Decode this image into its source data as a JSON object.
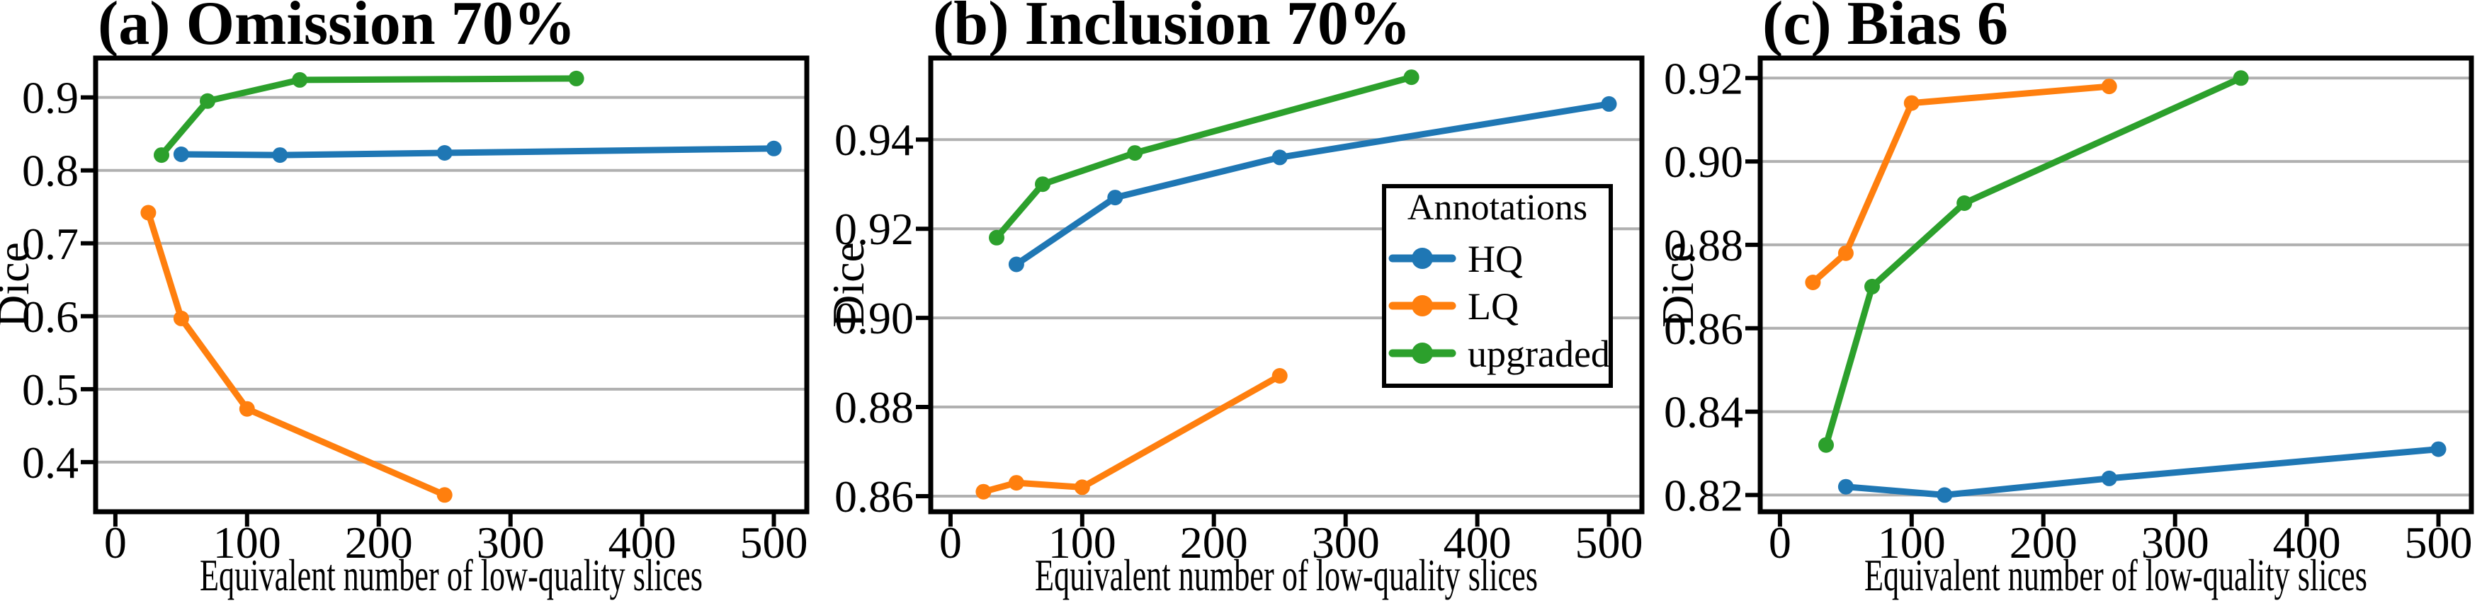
{
  "colors": {
    "hq": "#1f77b4",
    "lq": "#ff7f0e",
    "upgraded": "#2ca02c",
    "grid": "#b0b0b0",
    "spine": "#000000",
    "background": "#ffffff"
  },
  "legend": {
    "title": "Annotations",
    "entries": [
      {
        "label": "HQ",
        "color_key": "hq"
      },
      {
        "label": "LQ",
        "color_key": "lq"
      },
      {
        "label": "upgraded",
        "color_key": "upgraded"
      }
    ],
    "position": "inside panel b, right side"
  },
  "chart_data": [
    {
      "id": "a",
      "type": "line",
      "title": "(a) Omission 70%",
      "xlabel": "Equivalent number of low-quality slices",
      "ylabel": "Dice",
      "xlim": [
        -15,
        525
      ],
      "ylim": [
        0.332,
        0.954
      ],
      "xticks": [
        0,
        100,
        200,
        300,
        400,
        500
      ],
      "xtick_labels": [
        "0",
        "100",
        "200",
        "300",
        "400",
        "500"
      ],
      "yticks": [
        0.4,
        0.5,
        0.6,
        0.7,
        0.8,
        0.9
      ],
      "ytick_labels": [
        "0.4",
        "0.5",
        "0.6",
        "0.7",
        "0.8",
        "0.9"
      ],
      "grid": true,
      "show_legend": false,
      "series": [
        {
          "name": "HQ",
          "color_key": "hq",
          "points": [
            [
              50,
              0.822
            ],
            [
              125,
              0.821
            ],
            [
              250,
              0.824
            ],
            [
              500,
              0.83
            ]
          ]
        },
        {
          "name": "LQ",
          "color_key": "lq",
          "points": [
            [
              25,
              0.742
            ],
            [
              50,
              0.597
            ],
            [
              100,
              0.473
            ],
            [
              250,
              0.355
            ]
          ]
        },
        {
          "name": "upgraded",
          "color_key": "upgraded",
          "points": [
            [
              35,
              0.821
            ],
            [
              70,
              0.895
            ],
            [
              140,
              0.924
            ],
            [
              350,
              0.926
            ]
          ]
        }
      ]
    },
    {
      "id": "b",
      "type": "line",
      "title": "(b) Inclusion 70%",
      "xlabel": "Equivalent number of low-quality slices",
      "ylabel": "Dice",
      "xlim": [
        -15,
        525
      ],
      "ylim": [
        0.8565,
        0.9583
      ],
      "xticks": [
        0,
        100,
        200,
        300,
        400,
        500
      ],
      "xtick_labels": [
        "0",
        "100",
        "200",
        "300",
        "400",
        "500"
      ],
      "yticks": [
        0.86,
        0.88,
        0.9,
        0.92,
        0.94
      ],
      "ytick_labels": [
        "0.86",
        "0.88",
        "0.90",
        "0.92",
        "0.94"
      ],
      "grid": true,
      "show_legend": true,
      "series": [
        {
          "name": "HQ",
          "color_key": "hq",
          "points": [
            [
              50,
              0.912
            ],
            [
              125,
              0.927
            ],
            [
              250,
              0.936
            ],
            [
              500,
              0.948
            ]
          ]
        },
        {
          "name": "LQ",
          "color_key": "lq",
          "points": [
            [
              25,
              0.861
            ],
            [
              50,
              0.863
            ],
            [
              100,
              0.862
            ],
            [
              250,
              0.887
            ]
          ]
        },
        {
          "name": "upgraded",
          "color_key": "upgraded",
          "points": [
            [
              35,
              0.918
            ],
            [
              70,
              0.93
            ],
            [
              140,
              0.937
            ],
            [
              350,
              0.954
            ]
          ]
        }
      ]
    },
    {
      "id": "c",
      "type": "line",
      "title": "(c) Bias 6",
      "xlabel": "Equivalent number of low-quality slices",
      "ylabel": "Dice",
      "xlim": [
        -15,
        525
      ],
      "ylim": [
        0.816,
        0.9248
      ],
      "xticks": [
        0,
        100,
        200,
        300,
        400,
        500
      ],
      "xtick_labels": [
        "0",
        "100",
        "200",
        "300",
        "400",
        "500"
      ],
      "yticks": [
        0.82,
        0.84,
        0.86,
        0.88,
        0.9,
        0.92
      ],
      "ytick_labels": [
        "0.82",
        "0.84",
        "0.86",
        "0.88",
        "0.90",
        "0.92"
      ],
      "grid": true,
      "show_legend": false,
      "series": [
        {
          "name": "HQ",
          "color_key": "hq",
          "points": [
            [
              50,
              0.822
            ],
            [
              125,
              0.82
            ],
            [
              250,
              0.824
            ],
            [
              500,
              0.831
            ]
          ]
        },
        {
          "name": "LQ",
          "color_key": "lq",
          "points": [
            [
              25,
              0.871
            ],
            [
              50,
              0.878
            ],
            [
              100,
              0.914
            ],
            [
              250,
              0.918
            ]
          ]
        },
        {
          "name": "upgraded",
          "color_key": "upgraded",
          "points": [
            [
              35,
              0.832
            ],
            [
              70,
              0.87
            ],
            [
              140,
              0.89
            ],
            [
              350,
              0.92
            ]
          ]
        }
      ]
    }
  ]
}
